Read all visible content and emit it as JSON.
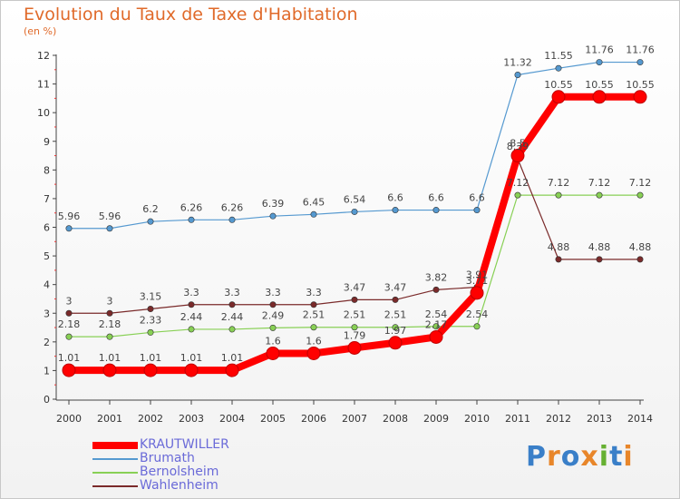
{
  "title": "Evolution du Taux de Taxe d'Habitation",
  "subtitle": "(en %)",
  "brand": "Proxiti",
  "chart_data": {
    "type": "line",
    "x": [
      "2000",
      "2001",
      "2002",
      "2003",
      "2004",
      "2005",
      "2006",
      "2007",
      "2008",
      "2009",
      "2010",
      "2011",
      "2012",
      "2013",
      "2014"
    ],
    "ylim": [
      0,
      12
    ],
    "yticks": [
      "0",
      "1",
      "2",
      "3",
      "4",
      "5",
      "6",
      "7",
      "8",
      "9",
      "10",
      "11",
      "12"
    ],
    "grid": false,
    "legend_position": "bottom-left",
    "series": [
      {
        "name": "KRAUTWILLER",
        "color": "#ff0000",
        "values": [
          1.01,
          1.01,
          1.01,
          1.01,
          1.01,
          1.6,
          1.6,
          1.79,
          1.97,
          2.17,
          3.71,
          8.5,
          10.55,
          10.55,
          10.55
        ],
        "labels": [
          "1.01",
          "1.01",
          "1.01",
          "1.01",
          "1.01",
          "1.6",
          "1.6",
          "1.79",
          "1.97",
          "2.17",
          "3.71",
          "8.5",
          "10.55",
          "10.55",
          "10.55"
        ]
      },
      {
        "name": "Brumath",
        "color": "#5599d0",
        "values": [
          5.96,
          5.96,
          6.2,
          6.26,
          6.26,
          6.39,
          6.45,
          6.54,
          6.6,
          6.6,
          6.6,
          11.32,
          11.55,
          11.76,
          11.76
        ],
        "labels": [
          "5.96",
          "5.96",
          "6.2",
          "6.26",
          "6.26",
          "6.39",
          "6.45",
          "6.54",
          "6.6",
          "6.6",
          "6.6",
          "11.32",
          "11.55",
          "11.76",
          "11.76"
        ]
      },
      {
        "name": "Bernolsheim",
        "color": "#88d055",
        "values": [
          2.18,
          2.18,
          2.33,
          2.44,
          2.44,
          2.49,
          2.51,
          2.51,
          2.51,
          2.54,
          2.54,
          7.12,
          7.12,
          7.12,
          7.12
        ],
        "labels": [
          "2.18",
          "2.18",
          "2.33",
          "2.44",
          "2.44",
          "2.49",
          "2.51",
          "2.51",
          "2.51",
          "2.54",
          "2.54",
          "7.12",
          "7.12",
          "7.12",
          "7.12"
        ]
      },
      {
        "name": "Wahlenheim",
        "color": "#7a2a2a",
        "values": [
          3,
          3,
          3.15,
          3.3,
          3.3,
          3.3,
          3.3,
          3.47,
          3.47,
          3.82,
          3.91,
          8.39,
          4.88,
          4.88,
          4.88
        ],
        "labels": [
          "3",
          "3",
          "3.15",
          "3.3",
          "3.3",
          "3.3",
          "3.3",
          "3.47",
          "3.47",
          "3.82",
          "3.91",
          "8.39",
          "4.88",
          "4.88",
          "4.88"
        ]
      }
    ]
  }
}
